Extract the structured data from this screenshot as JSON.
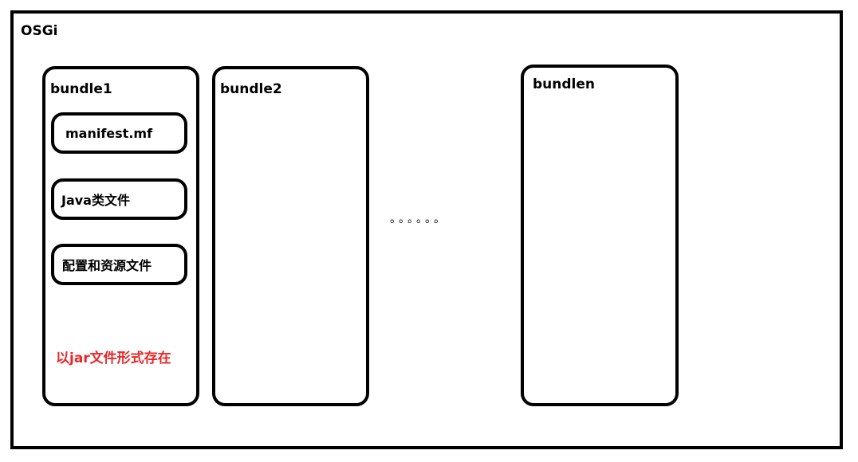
{
  "osgi": {
    "title": "OSGi"
  },
  "bundles": [
    {
      "label": "bundle1",
      "items": [
        "manifest.mf",
        "Java类文件",
        "配置和资源文件"
      ],
      "note": "以jar文件形式存在"
    },
    {
      "label": "bundle2"
    },
    {
      "label": "bundlen"
    }
  ],
  "ellipsis": "。。。。。。",
  "colors": {
    "note": "#e8282b",
    "border": "#000000",
    "background": "#ffffff"
  }
}
